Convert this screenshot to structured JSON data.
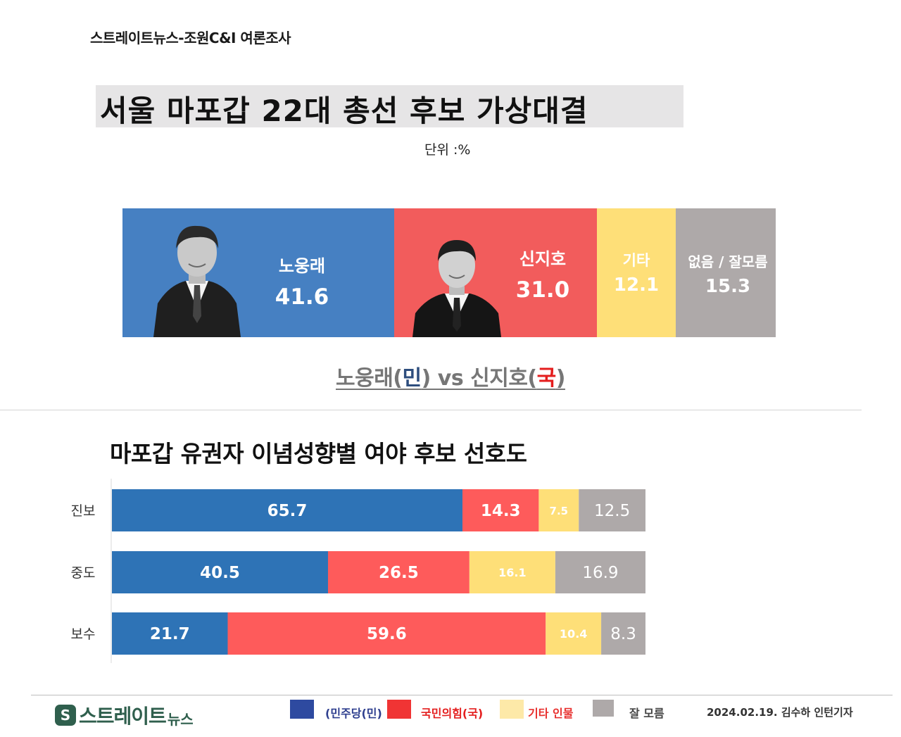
{
  "header": {
    "source": "스트레이트뉴스-조원C&I 여론조사"
  },
  "title": "서울 마포갑 22대 총선 후보 가상대결",
  "unit": "단위  :%",
  "overall": {
    "segments": [
      {
        "name": "노웅래",
        "value": "41.6",
        "color": "#4680c2"
      },
      {
        "name": "신지호",
        "value": "31.0",
        "color": "#f25c5c"
      },
      {
        "name": "기타",
        "value": "12.1",
        "color": "#fedf78"
      },
      {
        "name": "없음 / 잘모름",
        "value": "15.3",
        "color": "#aea9a9"
      }
    ]
  },
  "matchup": {
    "left": "노웅래(",
    "left_party": "민",
    "mid": ") vs 신지호(",
    "right_party": "국",
    "end": ")"
  },
  "subtitle": "마포갑 유권자 이념성향별 여야 후보 선호도",
  "chart_data": {
    "type": "bar",
    "orientation": "horizontal",
    "stacked": true,
    "categories": [
      "진보",
      "중도",
      "보수"
    ],
    "series": [
      {
        "name": "(민주당(민)",
        "color": "#2e73b6",
        "values": [
          65.7,
          40.5,
          21.7
        ]
      },
      {
        "name": "국민의힘(국)",
        "color": "#fe5b5b",
        "values": [
          14.3,
          26.5,
          59.6
        ]
      },
      {
        "name": "기타 인물",
        "color": "#fedf78",
        "values": [
          7.5,
          16.1,
          10.4
        ]
      },
      {
        "name": "잘 모름",
        "color": "#aea9a9",
        "values": [
          12.5,
          16.9,
          8.3
        ]
      }
    ],
    "labels": [
      [
        "65.7",
        "14.3",
        "7.5",
        "12.5"
      ],
      [
        "40.5",
        "26.5",
        "16.1",
        "16.9"
      ],
      [
        "21.7",
        "59.6",
        "10.4",
        "8.3"
      ]
    ],
    "xlim": [
      0,
      100
    ]
  },
  "legend": [
    {
      "label": "(민주당(민)",
      "color": "#2e4aa0",
      "text_color": "#2e3f8f"
    },
    {
      "label": "국민의힘(국)",
      "color": "#f03434",
      "text_color": "#e41e1e"
    },
    {
      "label": "기타 인물",
      "color": "#fde9a8",
      "text_color": "#e8312f"
    },
    {
      "label": "잘 모름",
      "color": "#aea9a9",
      "text_color": "#444444"
    }
  ],
  "footer": {
    "logo": "스트레이트",
    "logo_sub": "뉴스",
    "credit": "2024.02.19. 김수하 인턴기자"
  }
}
